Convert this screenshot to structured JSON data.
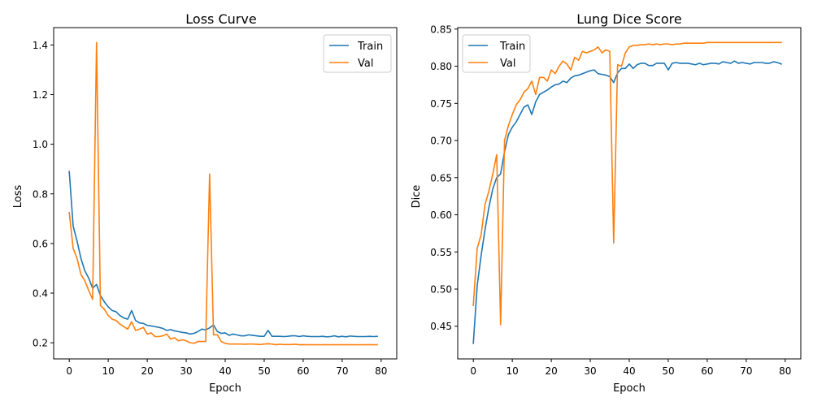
{
  "chart_data": [
    {
      "type": "line",
      "title": "Loss Curve",
      "xlabel": "Epoch",
      "ylabel": "Loss",
      "xlim": [
        -4,
        84
      ],
      "ylim": [
        0.135,
        1.47
      ],
      "xticks": [
        0,
        10,
        20,
        30,
        40,
        50,
        60,
        70,
        80
      ],
      "yticks": [
        0.2,
        0.4,
        0.6,
        0.8,
        1.0,
        1.2,
        1.4
      ],
      "ytick_labels": [
        "0.2",
        "0.4",
        "0.6",
        "0.8",
        "1.0",
        "1.2",
        "1.4"
      ],
      "grid": false,
      "legend": "top-right",
      "series": [
        {
          "name": "Train",
          "color": "#1f77b4",
          "values": [
            0.89,
            0.67,
            0.61,
            0.54,
            0.49,
            0.46,
            0.42,
            0.435,
            0.39,
            0.365,
            0.345,
            0.33,
            0.325,
            0.31,
            0.3,
            0.295,
            0.33,
            0.29,
            0.28,
            0.278,
            0.27,
            0.268,
            0.265,
            0.262,
            0.258,
            0.25,
            0.253,
            0.248,
            0.245,
            0.242,
            0.24,
            0.235,
            0.238,
            0.245,
            0.255,
            0.252,
            0.26,
            0.272,
            0.245,
            0.238,
            0.24,
            0.23,
            0.235,
            0.232,
            0.228,
            0.228,
            0.232,
            0.23,
            0.228,
            0.226,
            0.226,
            0.25,
            0.226,
            0.226,
            0.226,
            0.225,
            0.226,
            0.228,
            0.228,
            0.225,
            0.228,
            0.226,
            0.225,
            0.225,
            0.225,
            0.226,
            0.224,
            0.225,
            0.228,
            0.224,
            0.226,
            0.224,
            0.227,
            0.226,
            0.225,
            0.225,
            0.225,
            0.226,
            0.225,
            0.226
          ]
        },
        {
          "name": "Val",
          "color": "#ff7f0e",
          "values": [
            0.725,
            0.58,
            0.54,
            0.475,
            0.45,
            0.41,
            0.375,
            1.41,
            0.35,
            0.335,
            0.31,
            0.295,
            0.29,
            0.275,
            0.265,
            0.255,
            0.285,
            0.25,
            0.255,
            0.262,
            0.235,
            0.24,
            0.225,
            0.225,
            0.228,
            0.235,
            0.215,
            0.22,
            0.208,
            0.212,
            0.208,
            0.2,
            0.198,
            0.205,
            0.205,
            0.205,
            0.88,
            0.232,
            0.232,
            0.205,
            0.198,
            0.195,
            0.195,
            0.195,
            0.195,
            0.194,
            0.195,
            0.195,
            0.194,
            0.193,
            0.195,
            0.196,
            0.195,
            0.192,
            0.194,
            0.193,
            0.193,
            0.193,
            0.194,
            0.192,
            0.192,
            0.192,
            0.192,
            0.192,
            0.192,
            0.192,
            0.192,
            0.192,
            0.192,
            0.192,
            0.192,
            0.192,
            0.192,
            0.192,
            0.192,
            0.192,
            0.192,
            0.192,
            0.192,
            0.192
          ]
        }
      ]
    },
    {
      "type": "line",
      "title": "Lung Dice Score",
      "xlabel": "Epoch",
      "ylabel": "Dice",
      "xlim": [
        -4,
        84
      ],
      "ylim": [
        0.406,
        0.852
      ],
      "xticks": [
        0,
        10,
        20,
        30,
        40,
        50,
        60,
        70,
        80
      ],
      "yticks": [
        0.45,
        0.5,
        0.55,
        0.6,
        0.65,
        0.7,
        0.75,
        0.8,
        0.85
      ],
      "ytick_labels": [
        "0.45",
        "0.50",
        "0.55",
        "0.60",
        "0.65",
        "0.70",
        "0.75",
        "0.80",
        "0.85"
      ],
      "grid": false,
      "legend": "top-left",
      "series": [
        {
          "name": "Train",
          "color": "#1f77b4",
          "values": [
            0.427,
            0.505,
            0.545,
            0.58,
            0.61,
            0.635,
            0.65,
            0.655,
            0.685,
            0.708,
            0.718,
            0.725,
            0.735,
            0.745,
            0.748,
            0.735,
            0.752,
            0.762,
            0.765,
            0.768,
            0.772,
            0.775,
            0.776,
            0.78,
            0.778,
            0.784,
            0.787,
            0.788,
            0.79,
            0.792,
            0.794,
            0.795,
            0.79,
            0.789,
            0.788,
            0.786,
            0.778,
            0.791,
            0.797,
            0.797,
            0.803,
            0.797,
            0.802,
            0.804,
            0.804,
            0.801,
            0.801,
            0.804,
            0.804,
            0.804,
            0.795,
            0.804,
            0.805,
            0.804,
            0.804,
            0.804,
            0.803,
            0.802,
            0.804,
            0.802,
            0.803,
            0.804,
            0.804,
            0.803,
            0.806,
            0.805,
            0.804,
            0.807,
            0.804,
            0.805,
            0.804,
            0.803,
            0.805,
            0.805,
            0.805,
            0.804,
            0.804,
            0.806,
            0.805,
            0.803
          ]
        },
        {
          "name": "Val",
          "color": "#ff7f0e",
          "values": [
            0.478,
            0.555,
            0.573,
            0.614,
            0.632,
            0.655,
            0.681,
            0.452,
            0.7,
            0.72,
            0.735,
            0.748,
            0.755,
            0.765,
            0.77,
            0.78,
            0.762,
            0.785,
            0.785,
            0.78,
            0.795,
            0.79,
            0.8,
            0.807,
            0.803,
            0.795,
            0.812,
            0.808,
            0.82,
            0.818,
            0.82,
            0.822,
            0.826,
            0.818,
            0.822,
            0.82,
            0.562,
            0.802,
            0.8,
            0.818,
            0.826,
            0.828,
            0.828,
            0.829,
            0.829,
            0.83,
            0.829,
            0.83,
            0.829,
            0.83,
            0.83,
            0.829,
            0.83,
            0.83,
            0.831,
            0.831,
            0.831,
            0.831,
            0.831,
            0.831,
            0.832,
            0.832,
            0.832,
            0.832,
            0.832,
            0.832,
            0.832,
            0.832,
            0.832,
            0.832,
            0.832,
            0.832,
            0.832,
            0.832,
            0.832,
            0.832,
            0.832,
            0.832,
            0.832,
            0.832
          ]
        }
      ]
    }
  ]
}
